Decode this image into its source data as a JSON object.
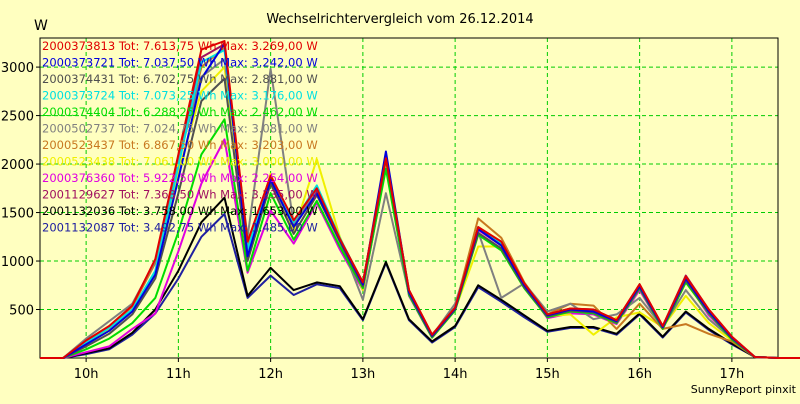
{
  "chart_data": {
    "type": "line",
    "title": "Wechselrichtervergleich vom 26.12.2014",
    "ylabel": "W",
    "xlabel": "",
    "footer": "SunnyReport pinxit",
    "x_start": "09:30",
    "x_end": "17:30",
    "x_step_minutes": 15,
    "x_ticks": [
      {
        "time": "10:00",
        "label": "10h"
      },
      {
        "time": "11:00",
        "label": "11h"
      },
      {
        "time": "12:00",
        "label": "12h"
      },
      {
        "time": "13:00",
        "label": "13h"
      },
      {
        "time": "14:00",
        "label": "14h"
      },
      {
        "time": "15:00",
        "label": "15h"
      },
      {
        "time": "16:00",
        "label": "16h"
      },
      {
        "time": "17:00",
        "label": "17h"
      }
    ],
    "ylim": [
      0,
      3300
    ],
    "y_ticks": [
      500,
      1000,
      1500,
      2000,
      2500,
      3000
    ],
    "grid": true,
    "grid_color": "#00CC00",
    "background": "#FFFFC0",
    "legend_position": "top-left",
    "series": [
      {
        "name": "2000373813 Tot: 7.613,75 Wh Max: 3.269,00 W",
        "color": "#E00000",
        "values": [
          0,
          0,
          180,
          330,
          540,
          1020,
          2100,
          3180,
          3269,
          1200,
          1880,
          1420,
          1750,
          1230,
          780,
          2060,
          700,
          240,
          520,
          1350,
          1200,
          770,
          450,
          510,
          500,
          390,
          760,
          330,
          840,
          500,
          220,
          10,
          0,
          0
        ]
      },
      {
        "name": "2000373721 Tot: 7.037,50 Wh Max: 3.242,00 W",
        "color": "#0000DD",
        "values": [
          0,
          0,
          140,
          280,
          480,
          860,
          1850,
          2880,
          3242,
          1050,
          1840,
          1350,
          1700,
          1220,
          760,
          2130,
          680,
          230,
          510,
          1330,
          1160,
          750,
          440,
          500,
          480,
          380,
          740,
          320,
          820,
          480,
          210,
          10,
          0,
          0
        ]
      },
      {
        "name": "2000374431 Tot: 6.702,75 Wh Max: 2.881,00 W",
        "color": "#505050",
        "values": [
          0,
          0,
          120,
          250,
          450,
          820,
          1700,
          2650,
          2881,
          1000,
          1800,
          1280,
          1680,
          1200,
          740,
          2050,
          670,
          220,
          500,
          1290,
          1130,
          730,
          430,
          490,
          470,
          370,
          730,
          310,
          800,
          470,
          200,
          10,
          0,
          0
        ]
      },
      {
        "name": "2000373724 Tot: 7.073,25 Wh Max: 3.176,00 W",
        "color": "#00E0E0",
        "values": [
          0,
          0,
          160,
          310,
          500,
          900,
          1980,
          3050,
          3176,
          1120,
          1860,
          1400,
          1780,
          1240,
          770,
          2060,
          690,
          235,
          515,
          1340,
          1180,
          760,
          445,
          505,
          490,
          385,
          750,
          325,
          830,
          490,
          215,
          10,
          0,
          0
        ]
      },
      {
        "name": "2000374404 Tot: 6.288,25 Wh Max: 2.462,00 W",
        "color": "#00DD00",
        "values": [
          0,
          0,
          90,
          200,
          360,
          620,
          1300,
          2100,
          2462,
          900,
          1700,
          1220,
          1620,
          1150,
          720,
          1950,
          650,
          210,
          490,
          1270,
          1110,
          720,
          420,
          480,
          460,
          360,
          720,
          300,
          780,
          460,
          190,
          10,
          0,
          0
        ]
      },
      {
        "name": "2000502737 Tot: 7.024,75 Wh Max: 3.081,00 W",
        "color": "#808080",
        "values": [
          0,
          0,
          200,
          380,
          560,
          1000,
          2050,
          2900,
          3081,
          1250,
          2980,
          1380,
          1720,
          1210,
          600,
          1700,
          660,
          230,
          560,
          1300,
          620,
          770,
          480,
          560,
          400,
          450,
          620,
          320,
          700,
          400,
          200,
          10,
          0,
          0
        ]
      },
      {
        "name": "2000523437 Tot: 6.867,50 Wh Max: 3.203,00 W",
        "color": "#C87820",
        "values": [
          0,
          0,
          170,
          320,
          530,
          980,
          2020,
          3000,
          3203,
          1150,
          1860,
          1360,
          1740,
          1220,
          760,
          2050,
          690,
          230,
          520,
          1440,
          1240,
          780,
          450,
          560,
          540,
          300,
          560,
          300,
          350,
          250,
          170,
          10,
          0,
          0
        ]
      },
      {
        "name": "2000523438 Tot: 7.061,00 Wh Max: 3.000,00 W",
        "color": "#F0F000",
        "values": [
          0,
          0,
          150,
          290,
          490,
          880,
          1920,
          2750,
          3000,
          1100,
          1900,
          1300,
          2050,
          1250,
          700,
          2000,
          680,
          220,
          500,
          1150,
          1150,
          760,
          430,
          450,
          240,
          420,
          470,
          320,
          640,
          360,
          180,
          10,
          0,
          0
        ]
      },
      {
        "name": "2000376360 Tot: 5.922,50 Wh Max: 2.254,00 W",
        "color": "#E000E0",
        "values": [
          0,
          0,
          60,
          120,
          300,
          460,
          1100,
          1800,
          2254,
          880,
          1520,
          1180,
          1600,
          1120,
          700,
          1980,
          640,
          210,
          500,
          1320,
          1160,
          750,
          410,
          460,
          450,
          350,
          700,
          300,
          800,
          440,
          200,
          10,
          0,
          0
        ]
      },
      {
        "name": "2001129627 Tot: 7.363,50 Wh Max: 3.235,00 W",
        "color": "#A01060",
        "values": [
          0,
          0,
          175,
          320,
          540,
          1000,
          2080,
          3100,
          3235,
          1180,
          1880,
          1410,
          1760,
          1230,
          780,
          2060,
          700,
          240,
          520,
          1350,
          1190,
          770,
          450,
          510,
          500,
          390,
          760,
          330,
          850,
          500,
          220,
          10,
          0,
          0
        ]
      },
      {
        "name": "2001132036 Tot: 3.758,00 Wh Max: 1.653,00 W",
        "color": "#000000",
        "values": [
          0,
          0,
          50,
          100,
          260,
          500,
          900,
          1400,
          1653,
          640,
          930,
          700,
          780,
          740,
          400,
          990,
          400,
          170,
          330,
          750,
          600,
          440,
          280,
          320,
          320,
          250,
          460,
          220,
          480,
          300,
          150,
          10,
          0,
          0
        ]
      },
      {
        "name": "2001132087 Tot: 3.492,75 Wh Max: 1.485,00 W",
        "color": "#2020A0",
        "values": [
          0,
          0,
          40,
          90,
          240,
          460,
          820,
          1250,
          1485,
          620,
          850,
          650,
          760,
          720,
          390,
          980,
          390,
          160,
          320,
          730,
          580,
          420,
          270,
          310,
          310,
          240,
          450,
          210,
          470,
          290,
          140,
          10,
          0,
          0
        ]
      }
    ]
  }
}
